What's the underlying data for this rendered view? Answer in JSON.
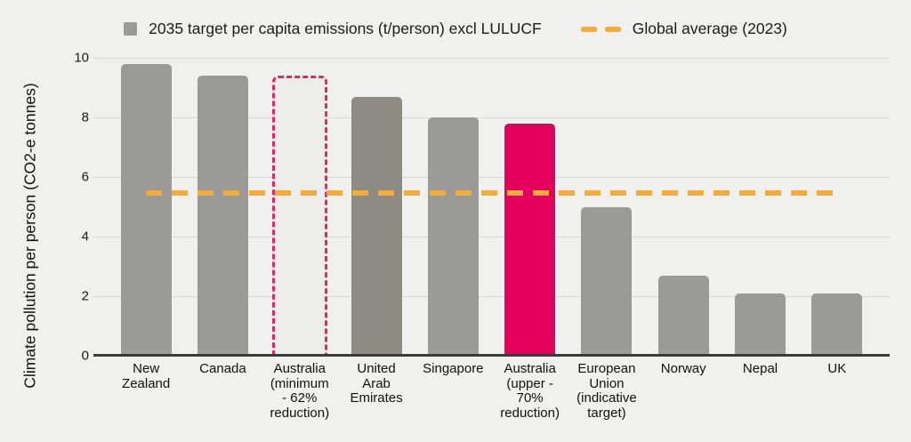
{
  "chart_data": {
    "type": "bar",
    "title": "",
    "ylabel": "Climate pollution per person (CO2-e tonnes)",
    "xlabel": "",
    "ylim": [
      0,
      10
    ],
    "yticks": [
      0,
      2,
      4,
      6,
      8,
      10
    ],
    "grid": true,
    "legend_position": "top-center",
    "legend": [
      {
        "label": "2035 target per capita emissions (t/person) excl LULUCF",
        "swatch": "gray-square"
      },
      {
        "label": "Global average (2023)",
        "swatch": "orange-dashes"
      }
    ],
    "categories": [
      "New Zealand",
      "Canada",
      "Australia (minimum - 62% reduction)",
      "United Arab Emirates",
      "Singapore",
      "Australia (upper - 70% reduction)",
      "European Union (indicative target)",
      "Norway",
      "Nepal",
      "UK"
    ],
    "label_lines": [
      [
        "New",
        "Zealand"
      ],
      [
        "Canada"
      ],
      [
        "Australia",
        "(minimum",
        "- 62%",
        "reduction)"
      ],
      [
        "United",
        "Arab",
        "Emirates"
      ],
      [
        "Singapore"
      ],
      [
        "Australia",
        "(upper -",
        "70%",
        "reduction)"
      ],
      [
        "European",
        "Union",
        "(indicative",
        "target)"
      ],
      [
        "Norway"
      ],
      [
        "Nepal"
      ],
      [
        "UK"
      ]
    ],
    "series": [
      {
        "name": "2035 target per capita emissions (t/person) excl LULUCF",
        "values": [
          9.8,
          9.4,
          9.4,
          8.7,
          8.0,
          7.8,
          5.0,
          2.7,
          2.1,
          2.1
        ]
      }
    ],
    "bar_styles": [
      "solid",
      "solid",
      "dashed-outline",
      "solid-dark",
      "solid",
      "highlight",
      "solid",
      "solid",
      "solid",
      "solid"
    ],
    "reference_line": {
      "label": "Global average (2023)",
      "value": 5.45
    }
  },
  "colors": {
    "background": "#f0f0ee",
    "bar_gray": "#9a9a98",
    "bar_gray_dark": "#8d8c83",
    "bar_highlight": "#e4015b",
    "outline_dash": "#e62565",
    "outline_fill": "#ededeb",
    "reference_orange": "#f3ab3a",
    "gridline": "#d8d8d6",
    "axis_line": "#3b3b3b",
    "text": "#1a1a1a"
  }
}
